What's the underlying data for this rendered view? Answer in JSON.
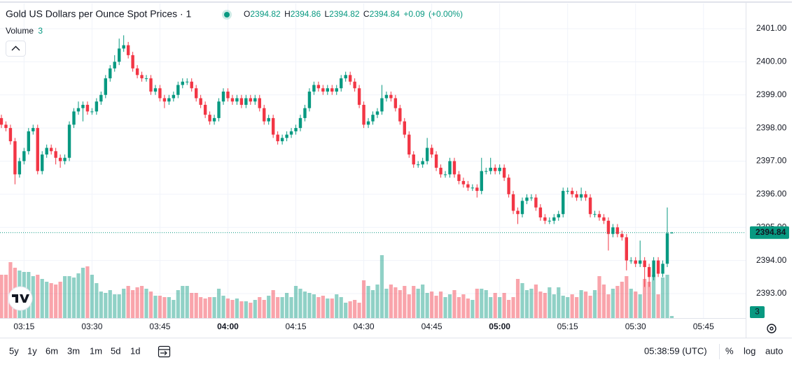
{
  "chart_data": {
    "type": "candlestick",
    "title": "Gold US Dollars per Ounce Spot Prices · 1",
    "legend_labels": [
      "O",
      "H",
      "L",
      "C"
    ],
    "change": "+0.09",
    "change_pct": "(+0.00%)",
    "volume_label": "Volume",
    "up_color": "#089981",
    "down_color": "#f23645",
    "x": [
      "03:10",
      "03:11",
      "03:12",
      "03:13",
      "03:14",
      "03:15",
      "03:16",
      "03:17",
      "03:18",
      "03:19",
      "03:20",
      "03:21",
      "03:22",
      "03:23",
      "03:24",
      "03:25",
      "03:26",
      "03:27",
      "03:28",
      "03:29",
      "03:30",
      "03:31",
      "03:32",
      "03:33",
      "03:34",
      "03:35",
      "03:36",
      "03:37",
      "03:38",
      "03:39",
      "03:40",
      "03:41",
      "03:42",
      "03:43",
      "03:44",
      "03:45",
      "03:46",
      "03:47",
      "03:48",
      "03:49",
      "03:50",
      "03:51",
      "03:52",
      "03:53",
      "03:54",
      "03:55",
      "03:56",
      "03:57",
      "03:58",
      "03:59",
      "04:00",
      "04:01",
      "04:02",
      "04:03",
      "04:04",
      "04:05",
      "04:06",
      "04:07",
      "04:08",
      "04:09",
      "04:10",
      "04:11",
      "04:12",
      "04:13",
      "04:14",
      "04:15",
      "04:16",
      "04:17",
      "04:18",
      "04:19",
      "04:20",
      "04:21",
      "04:22",
      "04:23",
      "04:24",
      "04:25",
      "04:26",
      "04:27",
      "04:28",
      "04:29",
      "04:30",
      "04:31",
      "04:32",
      "04:33",
      "04:34",
      "04:35",
      "04:36",
      "04:37",
      "04:38",
      "04:39",
      "04:40",
      "04:41",
      "04:42",
      "04:43",
      "04:44",
      "04:45",
      "04:46",
      "04:47",
      "04:48",
      "04:49",
      "04:50",
      "04:51",
      "04:52",
      "04:53",
      "04:54",
      "04:55",
      "04:56",
      "04:57",
      "04:58",
      "04:59",
      "05:00",
      "05:01",
      "05:02",
      "05:03",
      "05:04",
      "05:05",
      "05:06",
      "05:07",
      "05:08",
      "05:09",
      "05:10",
      "05:11",
      "05:12",
      "05:13",
      "05:14",
      "05:15",
      "05:16",
      "05:17",
      "05:18",
      "05:19",
      "05:20",
      "05:21",
      "05:22",
      "05:23",
      "05:24",
      "05:25",
      "05:26",
      "05:27",
      "05:28",
      "05:29",
      "05:30",
      "05:31",
      "05:32",
      "05:33",
      "05:34",
      "05:35",
      "05:36",
      "05:37",
      "05:38"
    ],
    "open": [
      2398.3,
      2398.1,
      2398.0,
      2397.6,
      2396.6,
      2397.0,
      2397.3,
      2397.9,
      2398.0,
      2396.7,
      2397.2,
      2397.4,
      2397.3,
      2397.1,
      2397.0,
      2397.1,
      2398.1,
      2398.5,
      2398.6,
      2398.7,
      2398.5,
      2398.5,
      2398.8,
      2399.0,
      2399.5,
      2399.8,
      2400.0,
      2400.4,
      2400.5,
      2400.2,
      2399.8,
      2399.6,
      2399.5,
      2399.5,
      2399.1,
      2399.2,
      2398.9,
      2398.8,
      2398.9,
      2399.0,
      2399.3,
      2399.4,
      2399.4,
      2399.2,
      2398.9,
      2398.7,
      2398.4,
      2398.2,
      2398.3,
      2398.8,
      2399.1,
      2398.9,
      2398.8,
      2398.9,
      2398.7,
      2398.9,
      2398.8,
      2398.9,
      2398.6,
      2398.2,
      2398.3,
      2397.8,
      2397.6,
      2397.7,
      2397.8,
      2397.9,
      2398.0,
      2398.3,
      2398.6,
      2399.1,
      2399.3,
      2399.2,
      2399.1,
      2399.2,
      2399.1,
      2399.2,
      2399.5,
      2399.6,
      2399.4,
      2399.2,
      2398.7,
      2398.1,
      2398.2,
      2398.4,
      2398.5,
      2398.9,
      2399.0,
      2398.9,
      2398.6,
      2398.2,
      2397.8,
      2397.2,
      2396.9,
      2396.9,
      2397.0,
      2397.4,
      2397.2,
      2396.8,
      2396.6,
      2396.6,
      2397.0,
      2396.6,
      2396.4,
      2396.3,
      2396.2,
      2396.2,
      2396.1,
      2396.7,
      2396.7,
      2396.8,
      2396.7,
      2396.8,
      2396.5,
      2396.0,
      2395.5,
      2395.4,
      2395.8,
      2395.9,
      2395.9,
      2395.6,
      2395.3,
      2395.2,
      2395.2,
      2395.3,
      2395.4,
      2396.1,
      2396.1,
      2396.0,
      2395.9,
      2396.0,
      2395.9,
      2395.4,
      2395.4,
      2395.3,
      2395.2,
      2394.8,
      2395.0,
      2394.8,
      2394.7,
      2394.0,
      2394.0,
      2393.9,
      2394.0,
      2393.8,
      2393.5,
      2394.0,
      2393.6,
      2393.9,
      2394.82
    ],
    "high": [
      2398.4,
      2398.2,
      2398.1,
      2397.7,
      2397.1,
      2397.4,
      2398.0,
      2398.1,
      2398.1,
      2397.3,
      2397.5,
      2397.5,
      2397.4,
      2397.2,
      2397.2,
      2398.2,
      2398.6,
      2398.8,
      2398.8,
      2398.8,
      2398.6,
      2398.9,
      2399.1,
      2399.6,
      2399.9,
      2400.2,
      2400.7,
      2400.8,
      2400.6,
      2400.3,
      2399.9,
      2399.7,
      2399.6,
      2399.6,
      2399.3,
      2399.3,
      2399.0,
      2399.0,
      2399.1,
      2399.4,
      2399.5,
      2399.5,
      2399.5,
      2399.3,
      2399.0,
      2398.8,
      2398.5,
      2398.4,
      2398.9,
      2399.2,
      2399.2,
      2399.0,
      2399.0,
      2399.0,
      2399.0,
      2399.0,
      2399.0,
      2399.0,
      2398.7,
      2398.4,
      2398.4,
      2397.9,
      2397.8,
      2397.9,
      2398.0,
      2398.1,
      2398.4,
      2398.7,
      2399.2,
      2399.4,
      2399.4,
      2399.3,
      2399.3,
      2399.3,
      2399.3,
      2399.6,
      2399.7,
      2399.7,
      2399.5,
      2399.3,
      2398.8,
      2398.3,
      2398.5,
      2398.6,
      2399.3,
      2399.1,
      2399.1,
      2399.0,
      2398.7,
      2398.3,
      2397.9,
      2397.3,
      2397.0,
      2397.1,
      2397.7,
      2397.5,
      2397.3,
      2396.9,
      2396.7,
      2397.1,
      2397.1,
      2396.7,
      2396.5,
      2396.4,
      2396.3,
      2396.3,
      2397.1,
      2396.8,
      2397.1,
      2396.9,
      2396.9,
      2396.9,
      2396.6,
      2396.1,
      2395.6,
      2395.9,
      2396.0,
      2396.0,
      2396.0,
      2395.7,
      2395.4,
      2395.3,
      2395.4,
      2395.5,
      2396.2,
      2396.2,
      2396.2,
      2396.1,
      2396.2,
      2396.1,
      2396.0,
      2395.5,
      2395.5,
      2395.4,
      2395.3,
      2395.1,
      2395.1,
      2394.9,
      2394.8,
      2394.1,
      2394.1,
      2394.6,
      2394.1,
      2393.9,
      2394.1,
      2394.1,
      2394.0,
      2395.6,
      2394.86
    ],
    "low": [
      2398.0,
      2397.9,
      2397.5,
      2396.3,
      2396.5,
      2396.9,
      2397.2,
      2397.8,
      2396.6,
      2396.6,
      2397.1,
      2397.2,
      2396.9,
      2396.8,
      2396.9,
      2397.0,
      2398.0,
      2398.4,
      2398.2,
      2398.4,
      2398.4,
      2398.4,
      2398.7,
      2398.9,
      2399.4,
      2399.7,
      2399.9,
      2400.3,
      2400.1,
      2399.7,
      2399.5,
      2399.4,
      2399.4,
      2399.0,
      2399.0,
      2398.8,
      2398.6,
      2398.7,
      2398.8,
      2398.9,
      2399.2,
      2399.3,
      2399.1,
      2398.8,
      2398.6,
      2398.3,
      2398.1,
      2398.1,
      2398.2,
      2398.7,
      2398.8,
      2398.7,
      2398.7,
      2398.6,
      2398.6,
      2398.7,
      2398.7,
      2398.5,
      2398.1,
      2398.1,
      2397.7,
      2397.5,
      2397.5,
      2397.6,
      2397.7,
      2397.8,
      2397.9,
      2398.2,
      2398.5,
      2399.0,
      2399.1,
      2399.0,
      2399.0,
      2399.0,
      2399.0,
      2399.1,
      2399.4,
      2399.3,
      2399.1,
      2398.6,
      2398.0,
      2398.0,
      2398.1,
      2398.3,
      2398.4,
      2398.8,
      2398.8,
      2398.5,
      2398.1,
      2397.7,
      2397.1,
      2396.8,
      2396.8,
      2396.8,
      2396.9,
      2397.1,
      2396.7,
      2396.5,
      2396.5,
      2396.5,
      2396.5,
      2396.3,
      2396.2,
      2396.1,
      2396.1,
      2395.9,
      2396.0,
      2396.6,
      2396.6,
      2396.6,
      2396.6,
      2396.4,
      2395.9,
      2395.4,
      2395.1,
      2395.3,
      2395.7,
      2395.8,
      2395.5,
      2395.2,
      2395.1,
      2395.1,
      2395.1,
      2395.2,
      2395.3,
      2396.0,
      2395.9,
      2395.8,
      2395.8,
      2395.8,
      2395.3,
      2395.3,
      2395.2,
      2395.1,
      2394.3,
      2394.7,
      2394.7,
      2394.6,
      2393.7,
      2393.9,
      2393.8,
      2393.8,
      2393.2,
      2393.2,
      2393.4,
      2393.5,
      2393.5,
      2393.8,
      2394.82
    ],
    "close": [
      2398.1,
      2398.0,
      2397.6,
      2396.6,
      2397.0,
      2397.3,
      2397.9,
      2398.0,
      2396.7,
      2397.2,
      2397.4,
      2397.3,
      2397.1,
      2397.0,
      2397.1,
      2398.1,
      2398.5,
      2398.6,
      2398.7,
      2398.5,
      2398.5,
      2398.8,
      2399.0,
      2399.5,
      2399.8,
      2400.0,
      2400.4,
      2400.5,
      2400.2,
      2399.8,
      2399.6,
      2399.5,
      2399.5,
      2399.1,
      2399.2,
      2398.9,
      2398.8,
      2398.9,
      2399.0,
      2399.3,
      2399.4,
      2399.4,
      2399.2,
      2398.9,
      2398.7,
      2398.4,
      2398.2,
      2398.3,
      2398.8,
      2399.1,
      2398.9,
      2398.8,
      2398.9,
      2398.7,
      2398.9,
      2398.8,
      2398.9,
      2398.6,
      2398.2,
      2398.3,
      2397.8,
      2397.6,
      2397.7,
      2397.8,
      2397.9,
      2398.0,
      2398.3,
      2398.6,
      2399.1,
      2399.3,
      2399.2,
      2399.1,
      2399.2,
      2399.1,
      2399.2,
      2399.5,
      2399.6,
      2399.4,
      2399.2,
      2398.7,
      2398.1,
      2398.2,
      2398.4,
      2398.5,
      2398.9,
      2399.0,
      2398.9,
      2398.6,
      2398.2,
      2397.8,
      2397.2,
      2396.9,
      2396.9,
      2397.0,
      2397.4,
      2397.2,
      2396.8,
      2396.6,
      2396.6,
      2397.0,
      2396.6,
      2396.4,
      2396.3,
      2396.2,
      2396.2,
      2396.1,
      2396.7,
      2396.7,
      2396.8,
      2396.7,
      2396.8,
      2396.5,
      2396.0,
      2395.5,
      2395.4,
      2395.8,
      2395.9,
      2395.9,
      2395.6,
      2395.3,
      2395.2,
      2395.2,
      2395.3,
      2395.4,
      2396.1,
      2396.1,
      2396.0,
      2395.9,
      2396.0,
      2395.9,
      2395.4,
      2395.4,
      2395.3,
      2395.2,
      2394.8,
      2395.0,
      2394.8,
      2394.7,
      2394.0,
      2394.0,
      2393.9,
      2394.0,
      2393.8,
      2393.5,
      2394.0,
      2393.6,
      2393.9,
      2394.82,
      2394.84
    ],
    "volume": [
      62,
      62,
      80,
      72,
      68,
      66,
      66,
      60,
      62,
      56,
      52,
      50,
      48,
      52,
      60,
      60,
      58,
      64,
      72,
      74,
      62,
      50,
      38,
      36,
      40,
      34,
      34,
      42,
      46,
      40,
      44,
      46,
      42,
      38,
      32,
      32,
      30,
      30,
      26,
      40,
      46,
      46,
      36,
      36,
      30,
      28,
      30,
      30,
      42,
      32,
      28,
      26,
      28,
      24,
      24,
      22,
      26,
      30,
      26,
      32,
      40,
      30,
      30,
      36,
      30,
      46,
      42,
      38,
      36,
      34,
      30,
      32,
      28,
      28,
      34,
      30,
      22,
      24,
      26,
      22,
      54,
      46,
      40,
      48,
      90,
      42,
      48,
      44,
      40,
      46,
      34,
      46,
      42,
      48,
      36,
      38,
      32,
      38,
      30,
      34,
      40,
      30,
      34,
      28,
      26,
      42,
      42,
      40,
      30,
      36,
      30,
      36,
      26,
      30,
      56,
      50,
      40,
      42,
      48,
      38,
      36,
      44,
      34,
      44,
      32,
      30,
      34,
      30,
      40,
      38,
      32,
      40,
      60,
      48,
      34,
      42,
      46,
      52,
      60,
      42,
      38,
      34,
      56,
      52,
      62,
      34,
      58,
      62,
      3
    ],
    "xlim": [
      "03:10",
      "05:54"
    ],
    "xticks": [
      "03:15",
      "03:30",
      "03:45",
      "04:00",
      "04:15",
      "04:30",
      "04:45",
      "05:00",
      "05:15",
      "05:30",
      "05:45"
    ],
    "ylim": [
      2392.26,
      2401.76
    ],
    "yticks": [
      {
        "value": 2393,
        "label": "2393.00"
      },
      {
        "value": 2394,
        "label": "2394.00"
      },
      {
        "value": 2395,
        "label": "2395.00"
      },
      {
        "value": 2396,
        "label": "2396.00"
      },
      {
        "value": 2397,
        "label": "2397.00"
      },
      {
        "value": 2398,
        "label": "2398.00"
      },
      {
        "value": 2399,
        "label": "2399.00"
      },
      {
        "value": 2400,
        "label": "2400.00"
      },
      {
        "value": 2401,
        "label": "2401.00"
      }
    ],
    "grid": true
  },
  "toolbar": {
    "ranges": [
      "5y",
      "1y",
      "6m",
      "3m",
      "1m",
      "5d",
      "1d"
    ],
    "clock": "05:38:59 (UTC)",
    "percent": "%",
    "log": "log",
    "auto": "auto"
  }
}
